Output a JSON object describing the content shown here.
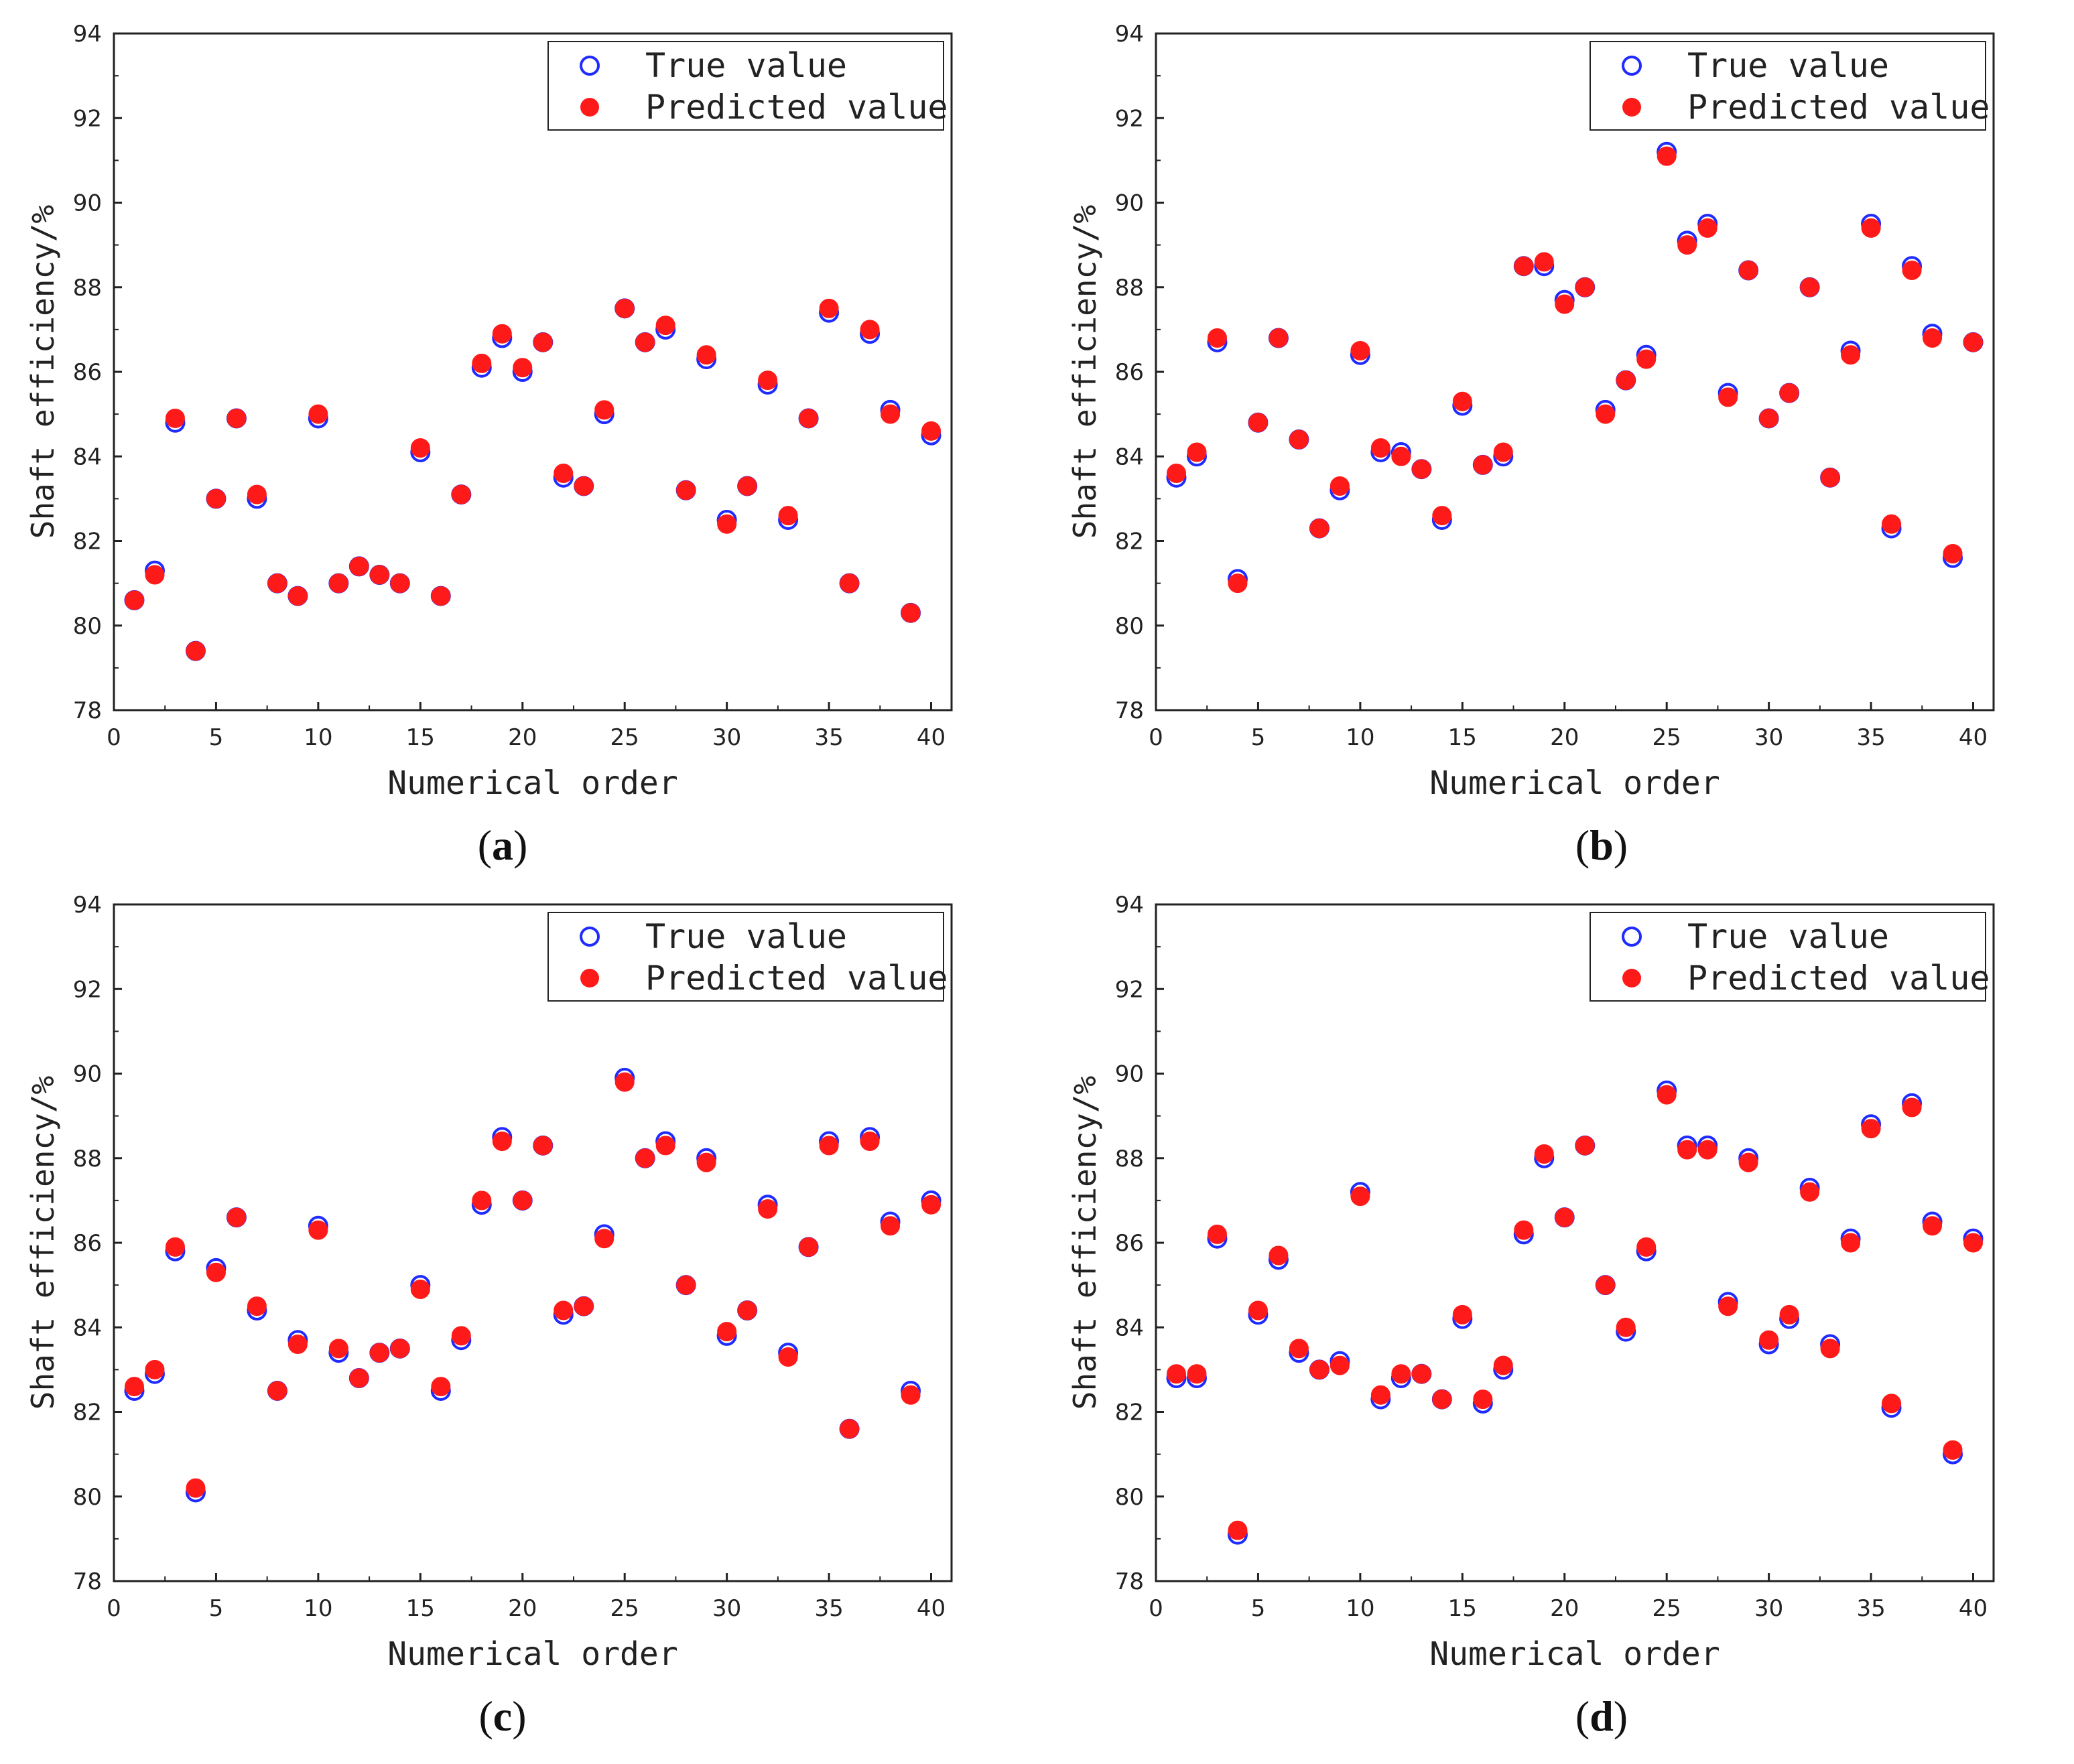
{
  "colors": {
    "true": "#1f2bff",
    "predicted": "#ff1a1a",
    "axis": "#222222"
  },
  "chart_data": [
    {
      "panel": "a",
      "type": "scatter",
      "caption": "a",
      "xlabel": "Numerical order",
      "ylabel": "Shaft efficiency/%",
      "xlim": [
        0,
        41
      ],
      "ylim": [
        78,
        94
      ],
      "xticks": [
        0,
        5,
        10,
        15,
        20,
        25,
        30,
        35,
        40
      ],
      "yticks": [
        78,
        80,
        82,
        84,
        86,
        88,
        90,
        92,
        94
      ],
      "legend": {
        "position": "top-right",
        "true_label": "True value",
        "pred_label": "Predicted value"
      },
      "x": [
        1,
        2,
        3,
        4,
        5,
        6,
        7,
        8,
        9,
        10,
        11,
        12,
        13,
        14,
        15,
        16,
        17,
        18,
        19,
        20,
        21,
        22,
        23,
        24,
        25,
        26,
        27,
        28,
        29,
        30,
        31,
        32,
        33,
        34,
        35,
        36,
        37,
        38,
        39,
        40
      ],
      "series": [
        {
          "name": "True value",
          "values": [
            80.6,
            81.3,
            84.8,
            79.4,
            83.0,
            84.9,
            83.0,
            81.0,
            80.7,
            84.9,
            81.0,
            81.4,
            81.2,
            81.0,
            84.1,
            80.7,
            83.1,
            86.1,
            86.8,
            86.0,
            86.7,
            83.5,
            83.3,
            85.0,
            87.5,
            86.7,
            87.0,
            83.2,
            86.3,
            82.5,
            83.3,
            85.7,
            82.5,
            84.9,
            87.4,
            81.0,
            86.9,
            85.1,
            80.3,
            84.5
          ]
        },
        {
          "name": "Predicted value",
          "values": [
            80.6,
            81.2,
            84.9,
            79.4,
            83.0,
            84.9,
            83.1,
            81.0,
            80.7,
            85.0,
            81.0,
            81.4,
            81.2,
            81.0,
            84.2,
            80.7,
            83.1,
            86.2,
            86.9,
            86.1,
            86.7,
            83.6,
            83.3,
            85.1,
            87.5,
            86.7,
            87.1,
            83.2,
            86.4,
            82.4,
            83.3,
            85.8,
            82.6,
            84.9,
            87.5,
            81.0,
            87.0,
            85.0,
            80.3,
            84.6
          ]
        }
      ]
    },
    {
      "panel": "b",
      "type": "scatter",
      "caption": "b",
      "xlabel": "Numerical order",
      "ylabel": "Shaft efficiency/%",
      "xlim": [
        0,
        41
      ],
      "ylim": [
        78,
        94
      ],
      "xticks": [
        0,
        5,
        10,
        15,
        20,
        25,
        30,
        35,
        40
      ],
      "yticks": [
        78,
        80,
        82,
        84,
        86,
        88,
        90,
        92,
        94
      ],
      "legend": {
        "position": "top-right",
        "true_label": "True value",
        "pred_label": "Predicted value"
      },
      "x": [
        1,
        2,
        3,
        4,
        5,
        6,
        7,
        8,
        9,
        10,
        11,
        12,
        13,
        14,
        15,
        16,
        17,
        18,
        19,
        20,
        21,
        22,
        23,
        24,
        25,
        26,
        27,
        28,
        29,
        30,
        31,
        32,
        33,
        34,
        35,
        36,
        37,
        38,
        39,
        40
      ],
      "series": [
        {
          "name": "True value",
          "values": [
            83.5,
            84.0,
            86.7,
            81.1,
            84.8,
            86.8,
            84.4,
            82.3,
            83.2,
            86.4,
            84.1,
            84.1,
            83.7,
            82.5,
            85.2,
            83.8,
            84.0,
            88.5,
            88.5,
            87.7,
            88.0,
            85.1,
            85.8,
            86.4,
            91.2,
            89.1,
            89.5,
            85.5,
            88.4,
            84.9,
            85.5,
            88.0,
            83.5,
            86.5,
            89.5,
            82.3,
            88.5,
            86.9,
            81.6,
            86.7
          ]
        },
        {
          "name": "Predicted value",
          "values": [
            83.6,
            84.1,
            86.8,
            81.0,
            84.8,
            86.8,
            84.4,
            82.3,
            83.3,
            86.5,
            84.2,
            84.0,
            83.7,
            82.6,
            85.3,
            83.8,
            84.1,
            88.5,
            88.6,
            87.6,
            88.0,
            85.0,
            85.8,
            86.3,
            91.1,
            89.0,
            89.4,
            85.4,
            88.4,
            84.9,
            85.5,
            88.0,
            83.5,
            86.4,
            89.4,
            82.4,
            88.4,
            86.8,
            81.7,
            86.7
          ]
        }
      ]
    },
    {
      "panel": "c",
      "type": "scatter",
      "caption": "c",
      "xlabel": "Numerical order",
      "ylabel": "Shaft efficiency/%",
      "xlim": [
        0,
        41
      ],
      "ylim": [
        78,
        94
      ],
      "xticks": [
        0,
        5,
        10,
        15,
        20,
        25,
        30,
        35,
        40
      ],
      "yticks": [
        78,
        80,
        82,
        84,
        86,
        88,
        90,
        92,
        94
      ],
      "legend": {
        "position": "top-right",
        "true_label": "True value",
        "pred_label": "Predicted value"
      },
      "x": [
        1,
        2,
        3,
        4,
        5,
        6,
        7,
        8,
        9,
        10,
        11,
        12,
        13,
        14,
        15,
        16,
        17,
        18,
        19,
        20,
        21,
        22,
        23,
        24,
        25,
        26,
        27,
        28,
        29,
        30,
        31,
        32,
        33,
        34,
        35,
        36,
        37,
        38,
        39,
        40
      ],
      "series": [
        {
          "name": "True value",
          "values": [
            82.5,
            82.9,
            85.8,
            80.1,
            85.4,
            86.6,
            84.4,
            82.5,
            83.7,
            86.4,
            83.4,
            82.8,
            83.4,
            83.5,
            85.0,
            82.5,
            83.7,
            86.9,
            88.5,
            87.0,
            88.3,
            84.3,
            84.5,
            86.2,
            89.9,
            88.0,
            88.4,
            85.0,
            88.0,
            83.8,
            84.4,
            86.9,
            83.4,
            85.9,
            88.4,
            81.6,
            88.5,
            86.5,
            82.5,
            87.0
          ]
        },
        {
          "name": "Predicted value",
          "values": [
            82.6,
            83.0,
            85.9,
            80.2,
            85.3,
            86.6,
            84.5,
            82.5,
            83.6,
            86.3,
            83.5,
            82.8,
            83.4,
            83.5,
            84.9,
            82.6,
            83.8,
            87.0,
            88.4,
            87.0,
            88.3,
            84.4,
            84.5,
            86.1,
            89.8,
            88.0,
            88.3,
            85.0,
            87.9,
            83.9,
            84.4,
            86.8,
            83.3,
            85.9,
            88.3,
            81.6,
            88.4,
            86.4,
            82.4,
            86.9
          ]
        }
      ]
    },
    {
      "panel": "d",
      "type": "scatter",
      "caption": "d",
      "xlabel": "Numerical order",
      "ylabel": "Shaft efficiency/%",
      "xlim": [
        0,
        41
      ],
      "ylim": [
        78,
        94
      ],
      "xticks": [
        0,
        5,
        10,
        15,
        20,
        25,
        30,
        35,
        40
      ],
      "yticks": [
        78,
        80,
        82,
        84,
        86,
        88,
        90,
        92,
        94
      ],
      "legend": {
        "position": "top-right",
        "true_label": "True value",
        "pred_label": "Predicted value"
      },
      "x": [
        1,
        2,
        3,
        4,
        5,
        6,
        7,
        8,
        9,
        10,
        11,
        12,
        13,
        14,
        15,
        16,
        17,
        18,
        19,
        20,
        21,
        22,
        23,
        24,
        25,
        26,
        27,
        28,
        29,
        30,
        31,
        32,
        33,
        34,
        35,
        36,
        37,
        38,
        39,
        40
      ],
      "series": [
        {
          "name": "True value",
          "values": [
            82.8,
            82.8,
            86.1,
            79.1,
            84.3,
            85.6,
            83.4,
            83.0,
            83.2,
            87.2,
            82.3,
            82.8,
            82.9,
            82.3,
            84.2,
            82.2,
            83.0,
            86.2,
            88.0,
            86.6,
            88.3,
            85.0,
            83.9,
            85.8,
            89.6,
            88.3,
            88.3,
            84.6,
            88.0,
            83.6,
            84.2,
            87.3,
            83.6,
            86.1,
            88.8,
            82.1,
            89.3,
            86.5,
            81.0,
            86.1
          ]
        },
        {
          "name": "Predicted value",
          "values": [
            82.9,
            82.9,
            86.2,
            79.2,
            84.4,
            85.7,
            83.5,
            83.0,
            83.1,
            87.1,
            82.4,
            82.9,
            82.9,
            82.3,
            84.3,
            82.3,
            83.1,
            86.3,
            88.1,
            86.6,
            88.3,
            85.0,
            84.0,
            85.9,
            89.5,
            88.2,
            88.2,
            84.5,
            87.9,
            83.7,
            84.3,
            87.2,
            83.5,
            86.0,
            88.7,
            82.2,
            89.2,
            86.4,
            81.1,
            86.0
          ]
        }
      ]
    }
  ]
}
